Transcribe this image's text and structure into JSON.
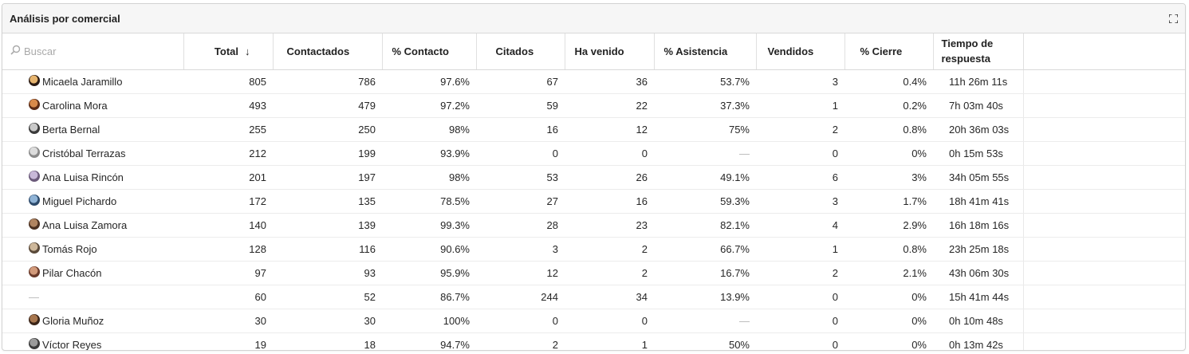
{
  "panel": {
    "title": "Análisis por comercial"
  },
  "search": {
    "placeholder": "Buscar"
  },
  "columns": [
    {
      "label": "Total",
      "sort_indicator": "↓"
    },
    {
      "label": "Contactados"
    },
    {
      "label": "% Contacto"
    },
    {
      "label": "Citados"
    },
    {
      "label": "Ha venido"
    },
    {
      "label": "% Asistencia"
    },
    {
      "label": "Vendidos"
    },
    {
      "label": "% Cierre"
    },
    {
      "label": "Tiempo de respuesta"
    }
  ],
  "rows": [
    {
      "name": "Micaela Jaramillo",
      "avatar": [
        "#2a1a12",
        "#e6b46e"
      ],
      "total": "805",
      "contactados": "786",
      "pct_contacto": "97.6%",
      "citados": "67",
      "ha_venido": "36",
      "pct_asistencia": "53.7%",
      "vendidos": "3",
      "pct_cierre": "0.4%",
      "tiempo": "11h 26m 11s"
    },
    {
      "name": "Carolina Mora",
      "avatar": [
        "#5b2a14",
        "#d98a4a"
      ],
      "total": "493",
      "contactados": "479",
      "pct_contacto": "97.2%",
      "citados": "59",
      "ha_venido": "22",
      "pct_asistencia": "37.3%",
      "vendidos": "1",
      "pct_cierre": "0.2%",
      "tiempo": "7h 03m 40s"
    },
    {
      "name": "Berta Bernal",
      "avatar": [
        "#3a3a3a",
        "#c9c9c9"
      ],
      "total": "255",
      "contactados": "250",
      "pct_contacto": "98%",
      "citados": "16",
      "ha_venido": "12",
      "pct_asistencia": "75%",
      "vendidos": "2",
      "pct_cierre": "0.8%",
      "tiempo": "20h 36m 03s"
    },
    {
      "name": "Cristóbal Terrazas",
      "avatar": [
        "#8a8a8a",
        "#dcdcdc"
      ],
      "total": "212",
      "contactados": "199",
      "pct_contacto": "93.9%",
      "citados": "0",
      "ha_venido": "0",
      "pct_asistencia": "—",
      "vendidos": "0",
      "pct_cierre": "0%",
      "tiempo": "0h 15m 53s"
    },
    {
      "name": "Ana Luisa Rincón",
      "avatar": [
        "#6b5a7a",
        "#c8b8d8"
      ],
      "total": "201",
      "contactados": "197",
      "pct_contacto": "98%",
      "citados": "53",
      "ha_venido": "26",
      "pct_asistencia": "49.1%",
      "vendidos": "6",
      "pct_cierre": "3%",
      "tiempo": "34h 05m 55s"
    },
    {
      "name": "Miguel Pichardo",
      "avatar": [
        "#2d4a6b",
        "#8fb3d6"
      ],
      "total": "172",
      "contactados": "135",
      "pct_contacto": "78.5%",
      "citados": "27",
      "ha_venido": "16",
      "pct_asistencia": "59.3%",
      "vendidos": "3",
      "pct_cierre": "1.7%",
      "tiempo": "18h 41m 41s"
    },
    {
      "name": "Ana Luisa Zamora",
      "avatar": [
        "#4a3020",
        "#b08460"
      ],
      "total": "140",
      "contactados": "139",
      "pct_contacto": "99.3%",
      "citados": "28",
      "ha_venido": "23",
      "pct_asistencia": "82.1%",
      "vendidos": "4",
      "pct_cierre": "2.9%",
      "tiempo": "16h 18m 16s"
    },
    {
      "name": "Tomás Rojo",
      "avatar": [
        "#5a4a3a",
        "#cdb79a"
      ],
      "total": "128",
      "contactados": "116",
      "pct_contacto": "90.6%",
      "citados": "3",
      "ha_venido": "2",
      "pct_asistencia": "66.7%",
      "vendidos": "1",
      "pct_cierre": "0.8%",
      "tiempo": "23h 25m 18s"
    },
    {
      "name": "Pilar Chacón",
      "avatar": [
        "#6a3a2a",
        "#d29a7a"
      ],
      "total": "97",
      "contactados": "93",
      "pct_contacto": "95.9%",
      "citados": "12",
      "ha_venido": "2",
      "pct_asistencia": "16.7%",
      "vendidos": "2",
      "pct_cierre": "2.1%",
      "tiempo": "43h 06m 30s"
    },
    {
      "name": "—",
      "avatar": null,
      "total": "60",
      "contactados": "52",
      "pct_contacto": "86.7%",
      "citados": "244",
      "ha_venido": "34",
      "pct_asistencia": "13.9%",
      "vendidos": "0",
      "pct_cierre": "0%",
      "tiempo": "15h 41m 44s"
    },
    {
      "name": "Gloria Muñoz",
      "avatar": [
        "#3a2418",
        "#a7764e"
      ],
      "total": "30",
      "contactados": "30",
      "pct_contacto": "100%",
      "citados": "0",
      "ha_venido": "0",
      "pct_asistencia": "—",
      "vendidos": "0",
      "pct_cierre": "0%",
      "tiempo": "0h 10m 48s"
    },
    {
      "name": "Víctor Reyes",
      "avatar": [
        "#3a3a3a",
        "#9a9a9a"
      ],
      "total": "19",
      "contactados": "18",
      "pct_contacto": "94.7%",
      "citados": "2",
      "ha_venido": "1",
      "pct_asistencia": "50%",
      "vendidos": "0",
      "pct_cierre": "0%",
      "tiempo": "0h 13m 42s"
    }
  ]
}
